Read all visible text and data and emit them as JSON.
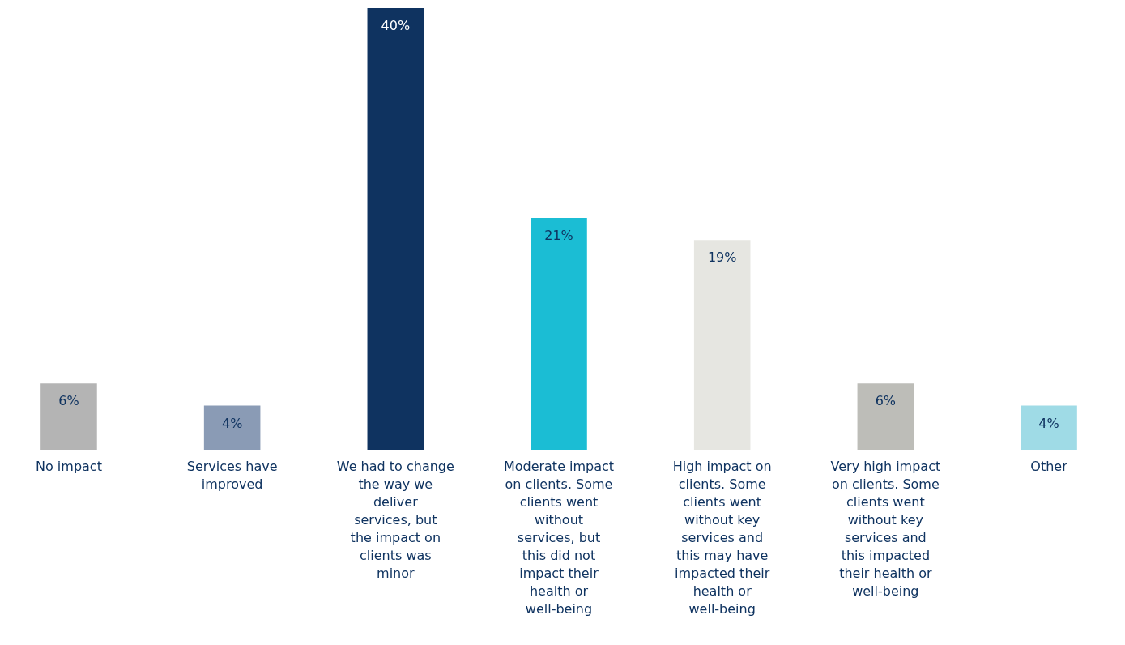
{
  "chart_data": {
    "type": "bar",
    "categories": [
      "No impact",
      "Services have improved",
      "We had to change the way we deliver services, but the impact on clients was minor",
      "Moderate impact on clients. Some clients went without services, but this did not impact their health or well-being",
      "High impact on clients. Some clients went without key services and this may have impacted their health or well-being",
      "Very high impact on clients. Some clients went without key services and this impacted their health or well-being",
      "Other"
    ],
    "values": [
      6,
      4,
      40,
      21,
      19,
      6,
      4
    ],
    "value_labels": [
      "6%",
      "4%",
      "40%",
      "21%",
      "19%",
      "6%",
      "4%"
    ],
    "colors": [
      "#b4b4b4",
      "#8a9bb5",
      "#0f3360",
      "#1bbdd4",
      "#e6e6e1",
      "#bdbdb8",
      "#9fdbe6"
    ],
    "grid": false
  }
}
